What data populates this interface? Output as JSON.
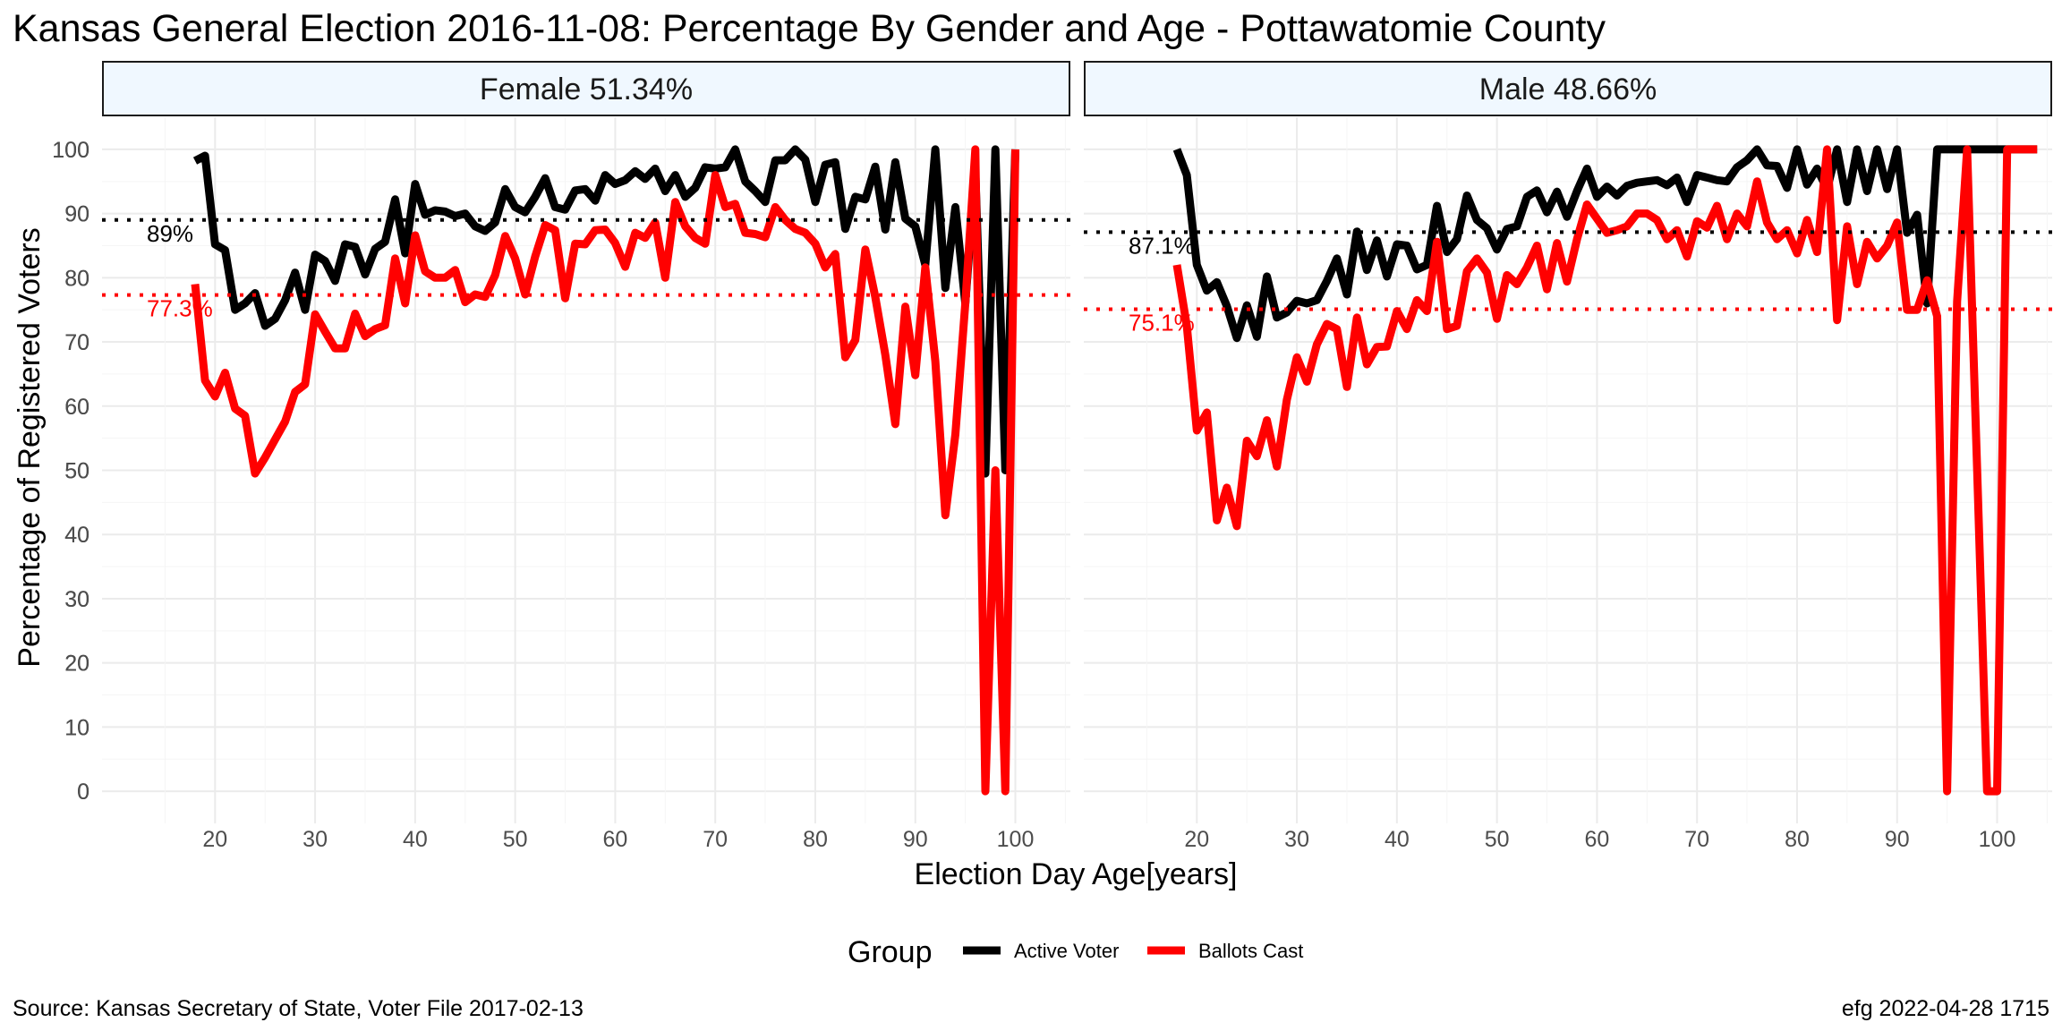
{
  "chart_data": {
    "type": "line",
    "title": "Kansas General Election 2016-11-08:  Percentage By Gender and Age - Pottawatomie County",
    "xlabel": "Election Day Age[years]",
    "ylabel": "Percentage of Registered Voters",
    "xlim": [
      8.7,
      105.5
    ],
    "ylim": [
      -5,
      105
    ],
    "x_ticks": [
      20,
      30,
      40,
      50,
      60,
      70,
      80,
      90,
      100
    ],
    "y_ticks": [
      0,
      10,
      20,
      30,
      40,
      50,
      60,
      70,
      80,
      90,
      100
    ],
    "grid": true,
    "legend": {
      "title": "Group",
      "position": "bottom",
      "entries": [
        {
          "name": "Active Voter",
          "color": "#000000"
        },
        {
          "name": "Ballots Cast",
          "color": "#ff0000"
        }
      ]
    },
    "caption_left": "Source:  Kansas Secretary of State, Voter File  2017-02-13",
    "caption_right": "efg 2022-04-28 1715",
    "panels": [
      {
        "label": "Female 51.34%",
        "reference_lines": [
          {
            "series": "Active Voter",
            "value": 89.0,
            "label": "89%",
            "color": "#000000"
          },
          {
            "series": "Ballots Cast",
            "value": 77.3,
            "label": "77.3%",
            "color": "#ff0000"
          }
        ],
        "series": [
          {
            "name": "Active Voter",
            "color": "#000000",
            "x": [
              18,
              19,
              20,
              21,
              22,
              23,
              24,
              25,
              26,
              27,
              28,
              29,
              30,
              31,
              32,
              33,
              34,
              35,
              36,
              37,
              38,
              39,
              40,
              41,
              42,
              43,
              44,
              45,
              46,
              47,
              48,
              49,
              50,
              51,
              52,
              53,
              54,
              55,
              56,
              57,
              58,
              59,
              60,
              61,
              62,
              63,
              64,
              65,
              66,
              67,
              68,
              69,
              70,
              71,
              72,
              73,
              74,
              75,
              76,
              77,
              78,
              79,
              80,
              81,
              82,
              83,
              84,
              85,
              86,
              87,
              88,
              89,
              90,
              91,
              92,
              93,
              94,
              95,
              96,
              97,
              98,
              99,
              100
            ],
            "y": [
              98.2,
              99,
              85.2,
              84.3,
              75,
              76,
              77.6,
              72.5,
              73.6,
              76.5,
              80.8,
              75,
              83.6,
              82.6,
              79.5,
              85.2,
              84.8,
              80.5,
              84.5,
              85.6,
              92.2,
              83.8,
              94.6,
              89.8,
              90.5,
              90.3,
              89.6,
              90,
              88,
              87.3,
              88.6,
              93.8,
              91,
              90.2,
              92.6,
              95.5,
              91,
              90.6,
              93.6,
              93.8,
              92,
              96,
              94.6,
              95.2,
              96.6,
              95.4,
              97,
              93.5,
              96,
              92.6,
              94,
              97.2,
              97,
              97.2,
              100,
              95,
              93.5,
              91.8,
              98.3,
              98.3,
              100,
              98.4,
              91.8,
              97.6,
              98,
              87.6,
              92.6,
              92.2,
              97.3,
              87.5,
              98,
              89.2,
              88,
              82,
              100,
              78.4,
              91,
              76,
              96.5,
              49.5,
              100,
              50,
              100
            ]
          },
          {
            "name": "Ballots Cast",
            "color": "#ff0000",
            "x": [
              18,
              19,
              20,
              21,
              22,
              23,
              24,
              25,
              26,
              27,
              28,
              29,
              30,
              31,
              32,
              33,
              34,
              35,
              36,
              37,
              38,
              39,
              40,
              41,
              42,
              43,
              44,
              45,
              46,
              47,
              48,
              49,
              50,
              51,
              52,
              53,
              54,
              55,
              56,
              57,
              58,
              59,
              60,
              61,
              62,
              63,
              64,
              65,
              66,
              67,
              68,
              69,
              70,
              71,
              72,
              73,
              74,
              75,
              76,
              77,
              78,
              79,
              80,
              81,
              82,
              83,
              84,
              85,
              86,
              87,
              88,
              89,
              90,
              91,
              92,
              93,
              94,
              95,
              96,
              97,
              98,
              99,
              100
            ],
            "y": [
              79,
              64,
              61.5,
              65.2,
              59.6,
              58.5,
              49.5,
              52,
              54.8,
              57.6,
              62.2,
              63.4,
              74.3,
              71.6,
              69,
              69,
              74.4,
              70.9,
              72,
              72.6,
              83,
              76,
              86.6,
              81,
              80,
              80,
              81.2,
              76.2,
              77.4,
              77,
              80.4,
              86.5,
              83,
              77.4,
              83.3,
              88.2,
              87.4,
              76.8,
              85.3,
              85.2,
              87.4,
              87.5,
              85.4,
              81.7,
              87,
              86.2,
              88.6,
              80,
              91.8,
              88,
              86.2,
              85.3,
              96,
              91,
              91.5,
              87,
              86.8,
              86.3,
              91,
              89,
              87.6,
              87,
              85.3,
              81.6,
              83.7,
              67.6,
              70.3,
              84.4,
              77,
              68,
              57.2,
              75.5,
              64.8,
              81.6,
              67,
              43,
              55.6,
              76,
              100,
              0,
              50,
              0,
              100
            ]
          }
        ]
      },
      {
        "label": "Male 48.66%",
        "reference_lines": [
          {
            "series": "Active Voter",
            "value": 87.1,
            "label": "87.1%",
            "color": "#000000"
          },
          {
            "series": "Ballots Cast",
            "value": 75.1,
            "label": "75.1%",
            "color": "#ff0000"
          }
        ],
        "series": [
          {
            "name": "Active Voter",
            "color": "#000000",
            "x": [
              18,
              19,
              20,
              21,
              22,
              23,
              24,
              25,
              26,
              27,
              28,
              29,
              30,
              31,
              32,
              33,
              34,
              35,
              36,
              37,
              38,
              39,
              40,
              41,
              42,
              43,
              44,
              45,
              46,
              47,
              48,
              49,
              50,
              51,
              52,
              53,
              54,
              55,
              56,
              57,
              58,
              59,
              60,
              61,
              62,
              63,
              64,
              65,
              66,
              67,
              68,
              69,
              70,
              71,
              72,
              73,
              74,
              75,
              76,
              77,
              78,
              79,
              80,
              81,
              82,
              83,
              84,
              85,
              86,
              87,
              88,
              89,
              90,
              91,
              92,
              93,
              94,
              95,
              96,
              97,
              98,
              99,
              100,
              101,
              102,
              103,
              104
            ],
            "y": [
              100,
              96,
              82,
              78,
              79.3,
              75.6,
              70.6,
              75.7,
              70.8,
              80.2,
              73.8,
              74.6,
              76.4,
              76,
              76.5,
              79.5,
              83,
              77.4,
              87.2,
              81.2,
              85.8,
              80.2,
              85.2,
              85,
              81.3,
              82,
              91.2,
              84,
              86,
              92.8,
              89,
              87.7,
              84.4,
              87.6,
              88,
              92.6,
              93.6,
              90.2,
              93.4,
              89.5,
              93.5,
              97,
              92.6,
              94.2,
              92.8,
              94.3,
              94.8,
              95,
              95.2,
              94.4,
              95.6,
              91.8,
              96,
              95.6,
              95.2,
              95,
              97.2,
              98.3,
              100,
              97.5,
              97.4,
              94,
              100,
              94.5,
              97,
              93.8,
              100,
              91.8,
              100,
              93.5,
              100,
              93.8,
              100,
              87,
              89.8,
              76,
              100,
              100,
              100,
              100,
              100,
              100,
              100,
              100,
              100,
              100,
              100
            ]
          },
          {
            "name": "Ballots Cast",
            "color": "#ff0000",
            "x": [
              18,
              19,
              20,
              21,
              22,
              23,
              24,
              25,
              26,
              27,
              28,
              29,
              30,
              31,
              32,
              33,
              34,
              35,
              36,
              37,
              38,
              39,
              40,
              41,
              42,
              43,
              44,
              45,
              46,
              47,
              48,
              49,
              50,
              51,
              52,
              53,
              54,
              55,
              56,
              57,
              58,
              59,
              60,
              61,
              62,
              63,
              64,
              65,
              66,
              67,
              68,
              69,
              70,
              71,
              72,
              73,
              74,
              75,
              76,
              77,
              78,
              79,
              80,
              81,
              82,
              83,
              84,
              85,
              86,
              87,
              88,
              89,
              90,
              91,
              92,
              93,
              94,
              95,
              96,
              97,
              98,
              99,
              100,
              101,
              102,
              103,
              104
            ],
            "y": [
              82,
              72.5,
              56.2,
              59,
              42.2,
              47.3,
              41.3,
              54.6,
              52.2,
              57.8,
              50.6,
              61,
              67.6,
              63.8,
              69.6,
              72.8,
              72,
              63,
              73.8,
              66.5,
              69.2,
              69.3,
              74.8,
              72,
              76.5,
              74.8,
              85.6,
              72,
              72.5,
              81,
              83,
              80.8,
              73.6,
              80.4,
              79,
              81.6,
              85,
              78.2,
              85.4,
              79.4,
              86,
              91.4,
              89.2,
              87,
              87.4,
              88,
              90,
              90,
              89,
              86,
              87.4,
              83.3,
              88.8,
              87.8,
              91.2,
              86,
              90,
              88,
              95,
              88.6,
              86,
              87.4,
              83.8,
              89,
              84,
              100,
              73.4,
              88,
              79,
              85.6,
              83,
              85,
              88.6,
              75,
              75,
              79.6,
              74,
              0,
              76.3,
              100,
              50,
              0,
              0,
              100,
              100,
              100,
              100
            ]
          }
        ]
      }
    ]
  }
}
